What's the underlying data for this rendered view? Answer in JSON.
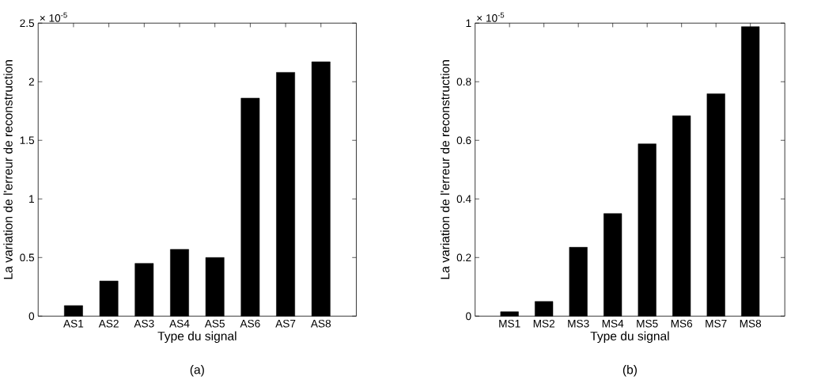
{
  "chart_data": [
    {
      "type": "bar",
      "xlabel": "Type du signal",
      "ylabel": "La variation de l'erreur de reconstruction",
      "categories": [
        "AS1",
        "AS2",
        "AS3",
        "AS4",
        "AS5",
        "AS6",
        "AS7",
        "AS8"
      ],
      "values": [
        0.09,
        0.3,
        0.45,
        0.57,
        0.5,
        1.86,
        2.08,
        2.17
      ],
      "color": "#000000",
      "ylim": [
        0,
        2.5
      ],
      "yticks": [
        0,
        0.5,
        1,
        1.5,
        2,
        2.5
      ],
      "grid": false,
      "annotations": [
        "× 10$^{-5}$",
        "(a)"
      ]
    },
    {
      "type": "bar",
      "xlabel": "Type du signal",
      "ylabel": "La variation de l'erreur de reconstruction",
      "categories": [
        "MS1",
        "MS2",
        "MS3",
        "MS4",
        "MS5",
        "MS6",
        "MS7",
        "MS8"
      ],
      "values": [
        0.015,
        0.05,
        0.235,
        0.35,
        0.588,
        0.684,
        0.759,
        0.988
      ],
      "color": "#000000",
      "ylim": [
        0,
        1
      ],
      "yticks": [
        0,
        0.2,
        0.4,
        0.6,
        0.8,
        1
      ],
      "grid": false,
      "annotations": [
        "× 10$^{-5}$",
        "(b)"
      ]
    }
  ]
}
